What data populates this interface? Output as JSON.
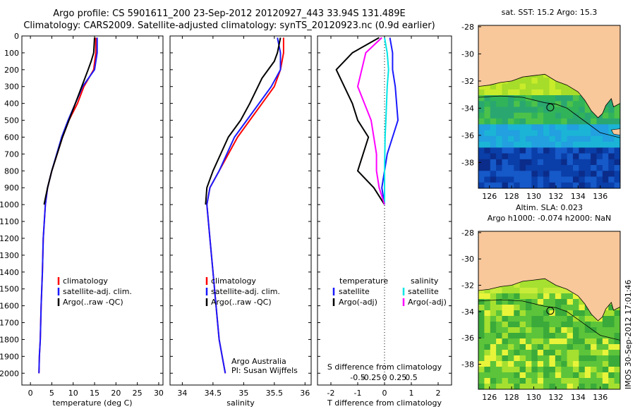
{
  "header": {
    "title_line1": "Argo profile: CS 5901611_200 23-Sep-2012 20120927_443 33.94S 131.489E",
    "title_line2": "Climatology: CARS2009. Satellite-adjusted climatology: synTS_20120923.nc (0.9d earlier)"
  },
  "colors": {
    "climatology": "#ff0000",
    "satellite": "#1a1aff",
    "argo": "#000000",
    "sal_sat": "#00e5e5",
    "sal_argo": "#ff00ff",
    "land": "#f8c79a"
  },
  "depth_ticks": [
    "0",
    "100",
    "200",
    "300",
    "400",
    "500",
    "600",
    "700",
    "800",
    "900",
    "1000",
    "1100",
    "1200",
    "1300",
    "1400",
    "1500",
    "1600",
    "1700",
    "1800",
    "1900",
    "2000"
  ],
  "chart_data": [
    {
      "type": "line",
      "panel": "temperature",
      "xlabel": "temperature (deg C)",
      "ylabel": "",
      "xlim": [
        -2,
        31
      ],
      "ylim": [
        2070,
        0
      ],
      "xticks": [
        "0",
        "5",
        "10",
        "15",
        "20",
        "25",
        "30"
      ],
      "legend": [
        "climatology",
        "satellite-adj. clim.",
        "Argo(..raw -QC)"
      ],
      "series": [
        {
          "name": "climatology",
          "color": "#ff0000",
          "x": [
            15.3,
            15.3,
            14.8,
            12.5,
            11.0,
            9.0,
            7.5,
            5.0,
            4.0,
            3.5,
            3.0,
            2.8,
            2.5,
            2.3,
            2.1,
            2.0
          ],
          "y": [
            10,
            100,
            200,
            300,
            400,
            500,
            600,
            800,
            900,
            1000,
            1200,
            1400,
            1600,
            1800,
            1900,
            2000
          ]
        },
        {
          "name": "satellite-adj. clim.",
          "color": "#1a1aff",
          "x": [
            15.6,
            15.6,
            15.0,
            12.2,
            10.5,
            8.8,
            7.3,
            5.0,
            4.0,
            3.5,
            3.0,
            2.8,
            2.5,
            2.3,
            2.1,
            2.0
          ],
          "y": [
            10,
            100,
            200,
            300,
            400,
            500,
            600,
            800,
            900,
            1000,
            1200,
            1400,
            1600,
            1800,
            1900,
            2000
          ]
        },
        {
          "name": "Argo(..raw -QC)",
          "color": "#000000",
          "x": [
            15.0,
            14.8,
            14.2,
            13.5,
            10.5,
            9.0,
            7.5,
            5.0,
            4.0,
            3.6,
            3.2
          ],
          "y": [
            10,
            100,
            150,
            200,
            400,
            500,
            600,
            800,
            900,
            950,
            1000
          ]
        }
      ]
    },
    {
      "type": "line",
      "panel": "salinity",
      "xlabel": "salinity",
      "ylabel": "",
      "xlim": [
        33.8,
        36.1
      ],
      "ylim": [
        2070,
        0
      ],
      "xticks": [
        "34",
        "34.5",
        "35",
        "35.5",
        "36"
      ],
      "legend": [
        "climatology",
        "satellite-adj. clim.",
        "Argo(..raw -QC)"
      ],
      "annotation": [
        "Argo Australia",
        "PI: Susan Wijffels"
      ],
      "series": [
        {
          "name": "climatology",
          "color": "#ff0000",
          "x": [
            35.65,
            35.65,
            35.6,
            35.5,
            35.3,
            35.1,
            34.9,
            34.6,
            34.45,
            34.4,
            34.45,
            34.5,
            34.55,
            34.6,
            34.65,
            34.7
          ],
          "y": [
            10,
            100,
            200,
            300,
            400,
            500,
            600,
            800,
            900,
            1000,
            1200,
            1400,
            1600,
            1800,
            1900,
            2000
          ]
        },
        {
          "name": "satellite-adj. clim.",
          "color": "#1a1aff",
          "x": [
            35.55,
            35.6,
            35.6,
            35.45,
            35.25,
            35.05,
            34.85,
            34.6,
            34.45,
            34.4,
            34.45,
            34.5,
            34.55,
            34.6,
            34.65,
            34.7
          ],
          "y": [
            10,
            100,
            200,
            300,
            400,
            500,
            600,
            800,
            900,
            1000,
            1200,
            1400,
            1600,
            1800,
            1900,
            2000
          ]
        },
        {
          "name": "Argo(..raw -QC)",
          "color": "#000000",
          "x": [
            35.6,
            35.55,
            35.5,
            35.3,
            35.1,
            34.95,
            34.75,
            34.5,
            34.4,
            34.38
          ],
          "y": [
            10,
            100,
            150,
            250,
            400,
            500,
            600,
            800,
            900,
            1000
          ]
        }
      ]
    },
    {
      "type": "line",
      "panel": "difference",
      "xlabel": "T difference from climatology",
      "xlabel2": "S difference from climatology",
      "xlim": [
        -2.5,
        2.5
      ],
      "ylim": [
        2070,
        0
      ],
      "xticks": [
        "-2",
        "-1",
        "0",
        "1",
        "2"
      ],
      "xticks2": [
        "-0.5",
        "-0.25",
        "0",
        "0.25",
        "0.5"
      ],
      "legend_left": [
        "temperature",
        "satellite",
        "Argo(-adj)"
      ],
      "legend_right": [
        "salinity",
        "satellite",
        "Argo(-adj)"
      ],
      "series": [
        {
          "name": "temperature satellite",
          "color": "#1a1aff",
          "x": [
            0.2,
            0.3,
            0.3,
            0.4,
            0.5,
            0.3,
            0.1,
            0.0,
            -0.1,
            0.0
          ],
          "y": [
            10,
            100,
            200,
            300,
            500,
            600,
            700,
            800,
            900,
            1000
          ]
        },
        {
          "name": "temperature Argo(-adj)",
          "color": "#000000",
          "x": [
            -0.2,
            -1.2,
            -1.8,
            -1.2,
            -1.0,
            -0.6,
            -0.8,
            -1.0,
            -0.4,
            0.0
          ],
          "y": [
            10,
            100,
            200,
            400,
            500,
            600,
            700,
            800,
            900,
            1000
          ]
        },
        {
          "name": "salinity satellite",
          "color": "#00e5e5",
          "x": [
            0.0,
            0.1,
            0.15,
            0.1,
            0.05,
            0.02,
            0.0,
            0.0
          ],
          "y": [
            10,
            100,
            200,
            300,
            500,
            600,
            800,
            1000
          ]
        },
        {
          "name": "salinity Argo(-adj)",
          "color": "#ff00ff",
          "x": [
            -0.1,
            -0.7,
            -1.0,
            -0.5,
            -0.4,
            -0.3,
            -0.3,
            -0.2,
            0.0
          ],
          "y": [
            10,
            100,
            300,
            500,
            600,
            700,
            800,
            900,
            1000
          ]
        }
      ]
    }
  ],
  "maps": [
    {
      "title": "sat. SST: 15.2 Argo: 15.3",
      "yticks": [
        "-28",
        "-30",
        "-32",
        "-34",
        "-36",
        "-38"
      ],
      "xticks": [
        "126",
        "128",
        "130",
        "132",
        "134",
        "136"
      ]
    },
    {
      "title": "Altim. SLA: 0.023",
      "title2": "Argo h1000: -0.074 h2000: NaN",
      "yticks": [
        "-28",
        "-30",
        "-32",
        "-34",
        "-36",
        "-38"
      ],
      "xticks": [
        "126",
        "128",
        "130",
        "132",
        "134",
        "136"
      ]
    }
  ],
  "footer": {
    "credit": "IMOS 30-Sep-2012 17:01:46"
  }
}
